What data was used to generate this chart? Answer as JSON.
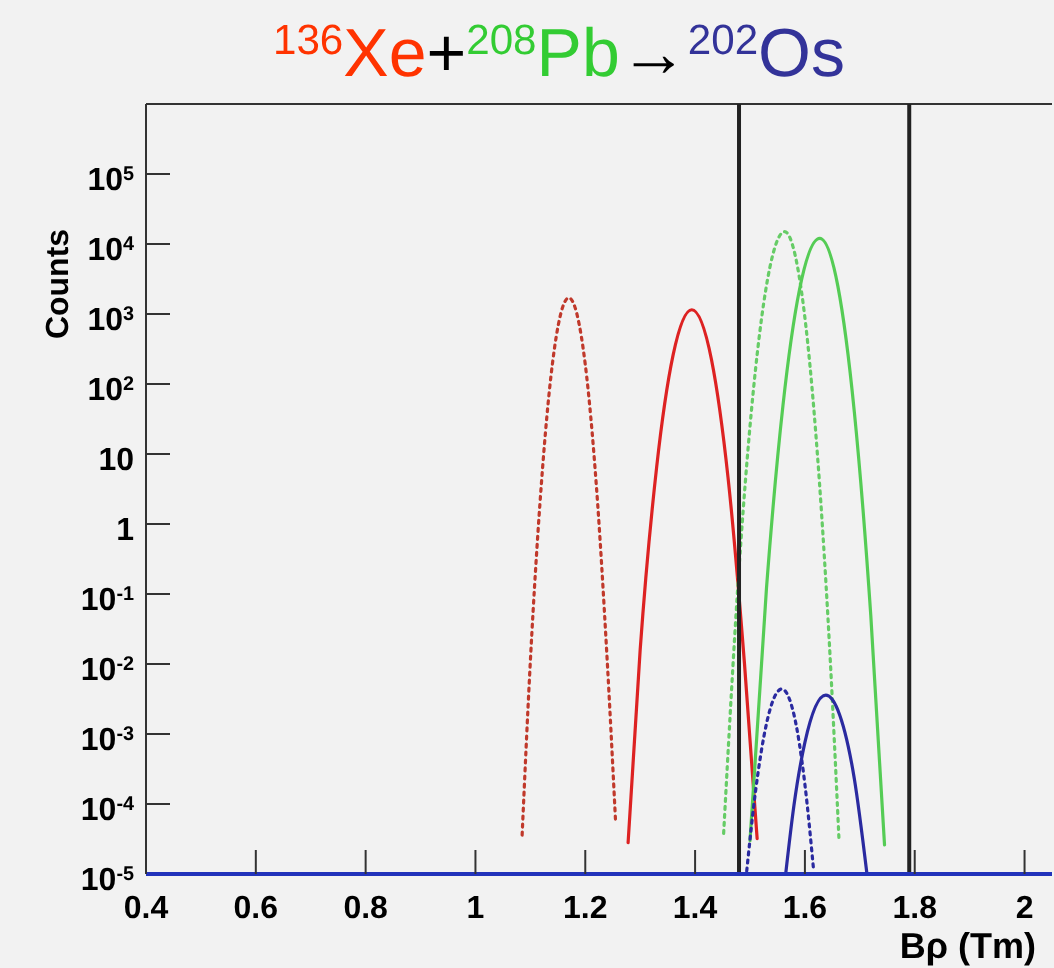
{
  "chart_data": {
    "type": "line",
    "title": "$^{136}$Xe+$^{208}$Pb→$^{202}$Os",
    "xlabel": "Bρ (Tm)",
    "ylabel": "Counts",
    "log": "y",
    "grid": false,
    "marker": "none",
    "xlim": [
      0.4,
      2.05
    ],
    "xticks": [
      0.4,
      0.6,
      0.8,
      1,
      1.2,
      1.4,
      1.6,
      1.8,
      2
    ],
    "ylim": [
      1e-05,
      1000000.0
    ],
    "yticks": [
      {
        "value": 1e-05,
        "label": "10$^{-5}$"
      },
      {
        "value": 0.0001,
        "label": "10$^{-4}$"
      },
      {
        "value": 0.001,
        "label": "10$^{-3}$"
      },
      {
        "value": 0.01,
        "label": "10$^{-2}$"
      },
      {
        "value": 0.1,
        "label": "10$^{-1}$"
      },
      1,
      10,
      {
        "value": 100,
        "label": "10$^{2}$"
      },
      {
        "value": 1000,
        "label": "10$^{3}$"
      },
      {
        "value": 10000,
        "label": "10$^{4}$"
      },
      {
        "value": 100000,
        "label": "10$^{5}$"
      }
    ],
    "ref_lines": [
      {
        "axis": "x",
        "value": 1.48,
        "color": "#222222"
      },
      {
        "axis": "x",
        "value": 1.79,
        "color": "#222222"
      }
    ],
    "series": [
      {
        "color": "#c0392b",
        "line_style": "dotted",
        "x": [
          1.085,
          1.1,
          1.12,
          1.14,
          1.17,
          1.2,
          1.22,
          1.24,
          1.255
        ],
        "values": [
          3.6e-05,
          0.011,
          3.7,
          190,
          1700,
          190,
          3.7,
          0.011,
          6e-05
        ]
      },
      {
        "color": "#dd2222",
        "line_style": "solid",
        "x": [
          1.278,
          1.3,
          1.33,
          1.36,
          1.394,
          1.43,
          1.46,
          1.49,
          1.513
        ],
        "values": [
          2.8e-05,
          0.016,
          6.5,
          260,
          1150,
          220,
          4.6,
          0.01,
          3.2e-05
        ]
      },
      {
        "color": "#66cc66",
        "line_style": "dotted",
        "x": [
          1.452,
          1.48,
          1.51,
          1.54,
          1.563,
          1.59,
          1.62,
          1.645,
          1.662
        ],
        "values": [
          3.8e-05,
          0.23,
          160,
          6300,
          15000,
          3300,
          19,
          0.017,
          3.2e-05
        ]
      },
      {
        "color": "#55cc55",
        "line_style": "solid",
        "x": [
          1.5,
          1.53,
          1.56,
          1.59,
          1.627,
          1.66,
          1.69,
          1.72,
          1.745
        ],
        "values": [
          3e-05,
          0.12,
          49,
          2200,
          12000,
          2500,
          40,
          0.049,
          2.6e-05
        ]
      },
      {
        "color": "#2a2aa0",
        "line_style": "dotted",
        "x": [
          1.494,
          1.51,
          1.53,
          1.558,
          1.58,
          1.6,
          1.616
        ],
        "values": [
          1.1e-05,
          0.00015,
          0.0014,
          0.0044,
          0.0019,
          0.00019,
          1.1e-05
        ]
      },
      {
        "color": "#2a2aa0",
        "line_style": "solid",
        "x": [
          1.565,
          1.58,
          1.6,
          1.638,
          1.66,
          1.69,
          1.713
        ],
        "values": [
          1e-05,
          9.5e-05,
          0.00076,
          0.0036,
          0.0022,
          0.00023,
          1e-05
        ]
      }
    ]
  }
}
